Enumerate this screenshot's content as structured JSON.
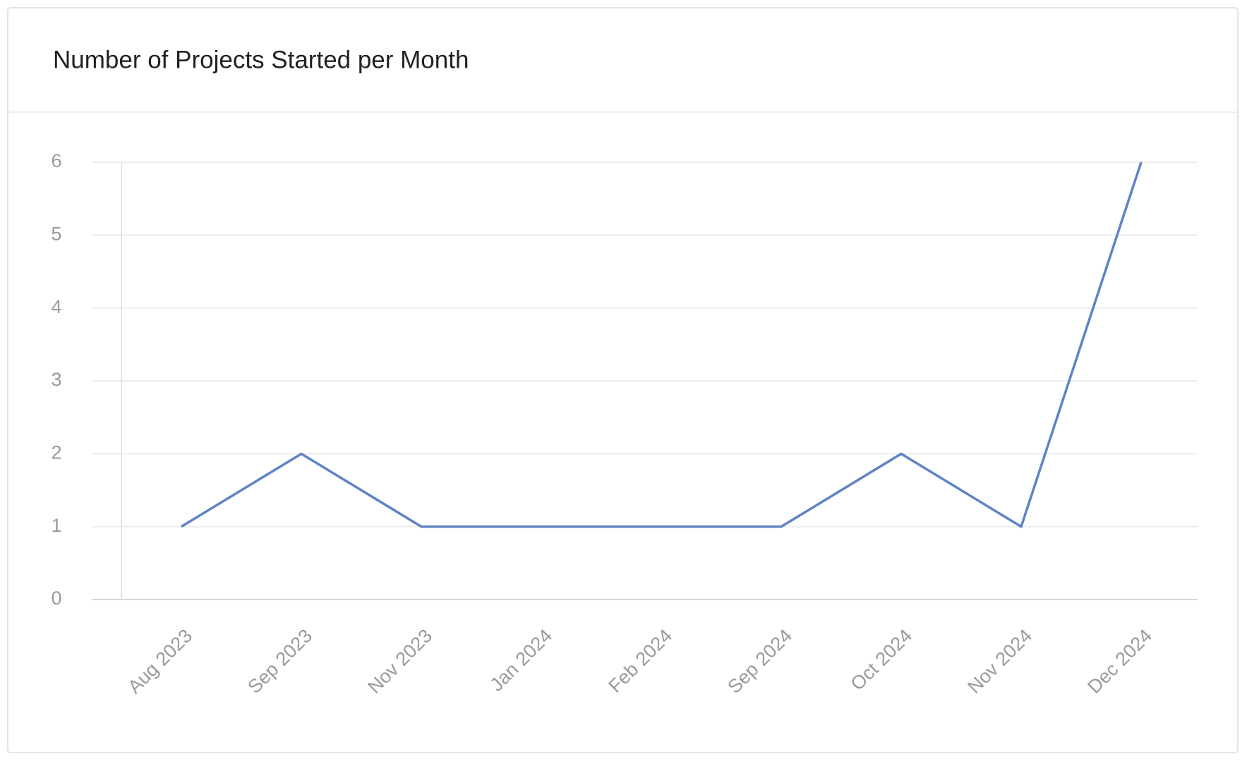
{
  "chart_data": {
    "type": "line",
    "title": "Number of Projects Started per Month",
    "categories": [
      "Aug 2023",
      "Sep 2023",
      "Nov 2023",
      "Jan 2024",
      "Feb 2024",
      "Sep 2024",
      "Oct 2024",
      "Nov 2024",
      "Dec 2024"
    ],
    "values": [
      1,
      2,
      1,
      1,
      1,
      1,
      2,
      1,
      6
    ],
    "color": "#5f83c4",
    "ylim": [
      0,
      6
    ],
    "yticks": [
      0,
      1,
      2,
      3,
      4,
      5,
      6
    ],
    "grid": true
  }
}
